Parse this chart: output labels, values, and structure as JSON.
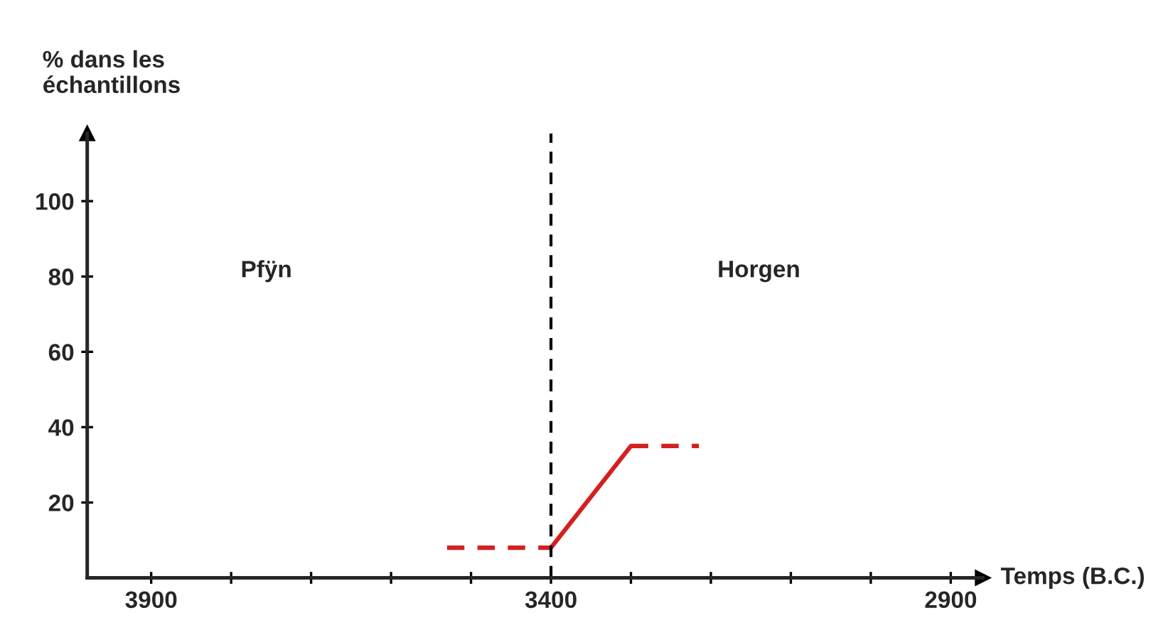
{
  "chart_data": {
    "type": "line",
    "xlabel": "Temps (B.C.)",
    "ylabel": "% dans les\néchantillons",
    "series": [
      {
        "color": "#d42020",
        "line_style": "dashed",
        "x": [
          3530,
          3400
        ],
        "values": [
          8,
          8
        ]
      },
      {
        "color": "#d42020",
        "line_style": "solid",
        "x": [
          3400,
          3300
        ],
        "values": [
          8,
          35
        ]
      },
      {
        "color": "#d42020",
        "line_style": "dashed",
        "x": [
          3300,
          3215
        ],
        "values": [
          35,
          35
        ]
      }
    ],
    "xlim": [
      3980,
      2860
    ],
    "ylim": [
      0,
      118
    ],
    "xticks": [
      3900,
      {
        "value": 3800,
        "label": null
      },
      {
        "value": 3700,
        "label": null
      },
      {
        "value": 3600,
        "label": null
      },
      {
        "value": 3500,
        "label": null
      },
      3400,
      {
        "value": 3300,
        "label": null
      },
      {
        "value": 3200,
        "label": null
      },
      {
        "value": 3100,
        "label": null
      },
      {
        "value": 3000,
        "label": null
      },
      2900
    ],
    "yticks": [
      20,
      40,
      60,
      80,
      100
    ],
    "ref_lines": [
      {
        "axis": "x",
        "value": 3400,
        "color": "#000000",
        "line_style": "dashed"
      }
    ],
    "annotations": [
      "Pfÿn",
      "Horgen"
    ],
    "grid": false,
    "legend": false
  }
}
